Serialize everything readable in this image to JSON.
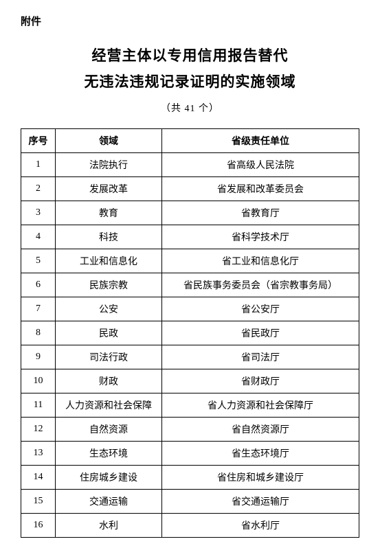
{
  "attachment_label": "附件",
  "title_line1": "经营主体以专用信用报告替代",
  "title_line2": "无违法违规记录证明的实施领域",
  "subtitle": "（共 41 个）",
  "table": {
    "headers": {
      "num": "序号",
      "domain": "领域",
      "unit": "省级责任单位"
    },
    "rows": [
      {
        "num": "1",
        "domain": "法院执行",
        "unit": "省高级人民法院"
      },
      {
        "num": "2",
        "domain": "发展改革",
        "unit": "省发展和改革委员会"
      },
      {
        "num": "3",
        "domain": "教育",
        "unit": "省教育厅"
      },
      {
        "num": "4",
        "domain": "科技",
        "unit": "省科学技术厅"
      },
      {
        "num": "5",
        "domain": "工业和信息化",
        "unit": "省工业和信息化厅"
      },
      {
        "num": "6",
        "domain": "民族宗教",
        "unit": "省民族事务委员会（省宗教事务局）"
      },
      {
        "num": "7",
        "domain": "公安",
        "unit": "省公安厅"
      },
      {
        "num": "8",
        "domain": "民政",
        "unit": "省民政厅"
      },
      {
        "num": "9",
        "domain": "司法行政",
        "unit": "省司法厅"
      },
      {
        "num": "10",
        "domain": "财政",
        "unit": "省财政厅"
      },
      {
        "num": "11",
        "domain": "人力资源和社会保障",
        "unit": "省人力资源和社会保障厅"
      },
      {
        "num": "12",
        "domain": "自然资源",
        "unit": "省自然资源厅"
      },
      {
        "num": "13",
        "domain": "生态环境",
        "unit": "省生态环境厅"
      },
      {
        "num": "14",
        "domain": "住房城乡建设",
        "unit": "省住房和城乡建设厅"
      },
      {
        "num": "15",
        "domain": "交通运输",
        "unit": "省交通运输厅"
      },
      {
        "num": "16",
        "domain": "水利",
        "unit": "省水利厅"
      }
    ]
  }
}
